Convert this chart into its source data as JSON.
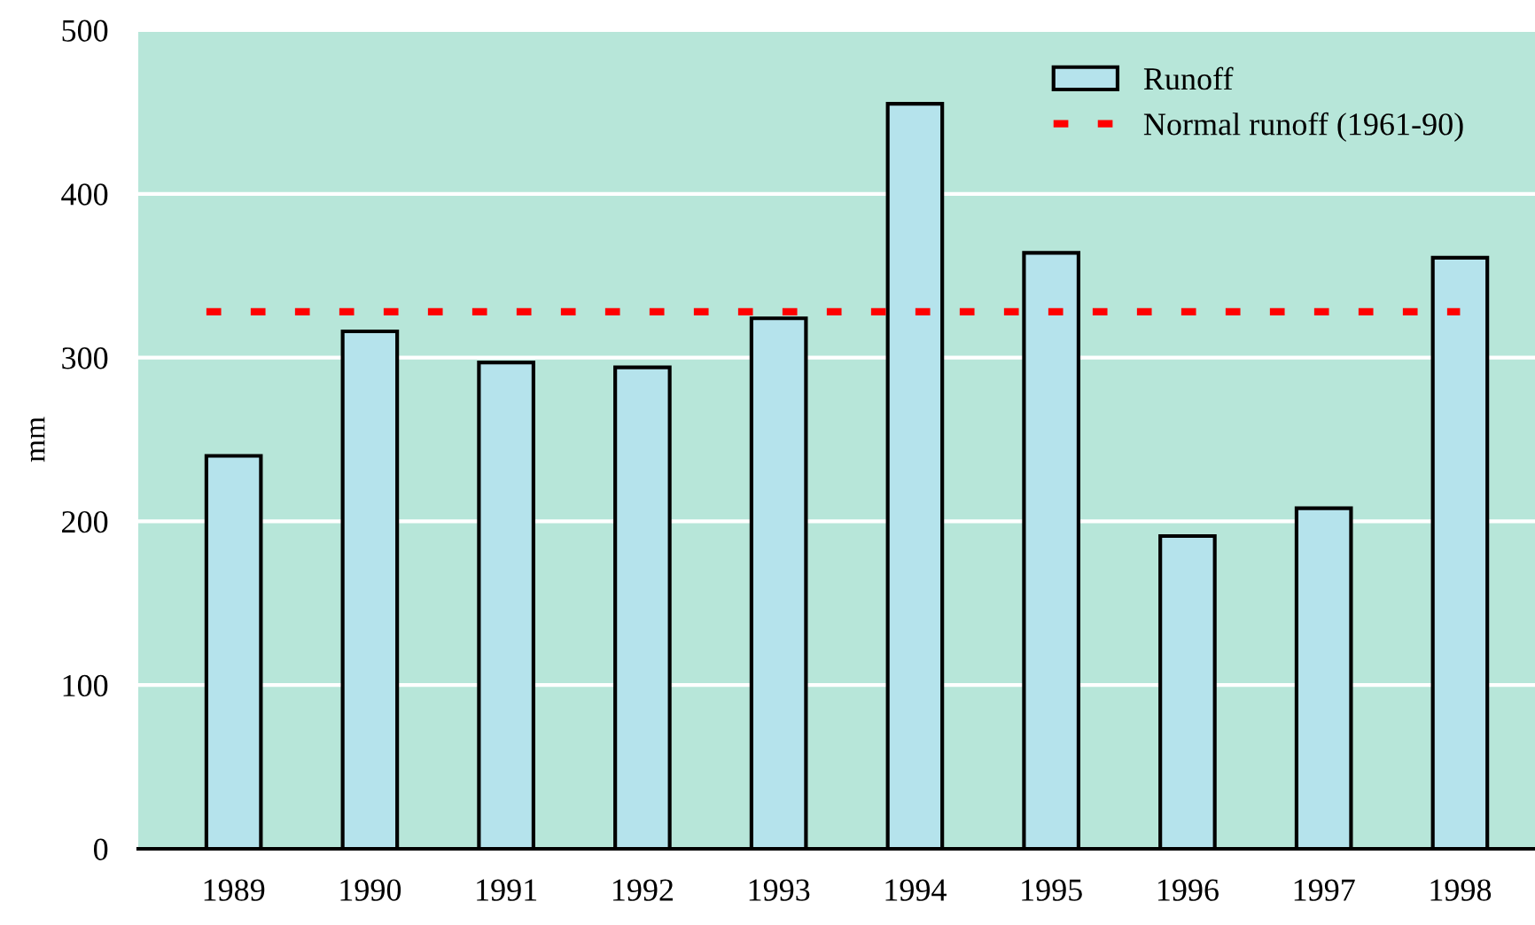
{
  "chart_data": {
    "type": "bar",
    "ylabel": "mm",
    "categories": [
      "1989",
      "1990",
      "1991",
      "1992",
      "1993",
      "1994",
      "1995",
      "1996",
      "1997",
      "1998"
    ],
    "series": [
      {
        "name": "Runoff",
        "color": "#b5e3ec",
        "values": [
          240,
          316,
          297,
          294,
          324,
          455,
          364,
          191,
          208,
          361
        ]
      }
    ],
    "ref_lines": [
      {
        "axis": "y",
        "value": 328,
        "label": "Normal runoff (1961-90)",
        "color": "#ff0000",
        "line_style": "dashed"
      }
    ],
    "ylim": [
      0,
      500
    ],
    "yticks": [
      0,
      100,
      200,
      300,
      400,
      500
    ],
    "grid": "y",
    "legend": "top right"
  }
}
